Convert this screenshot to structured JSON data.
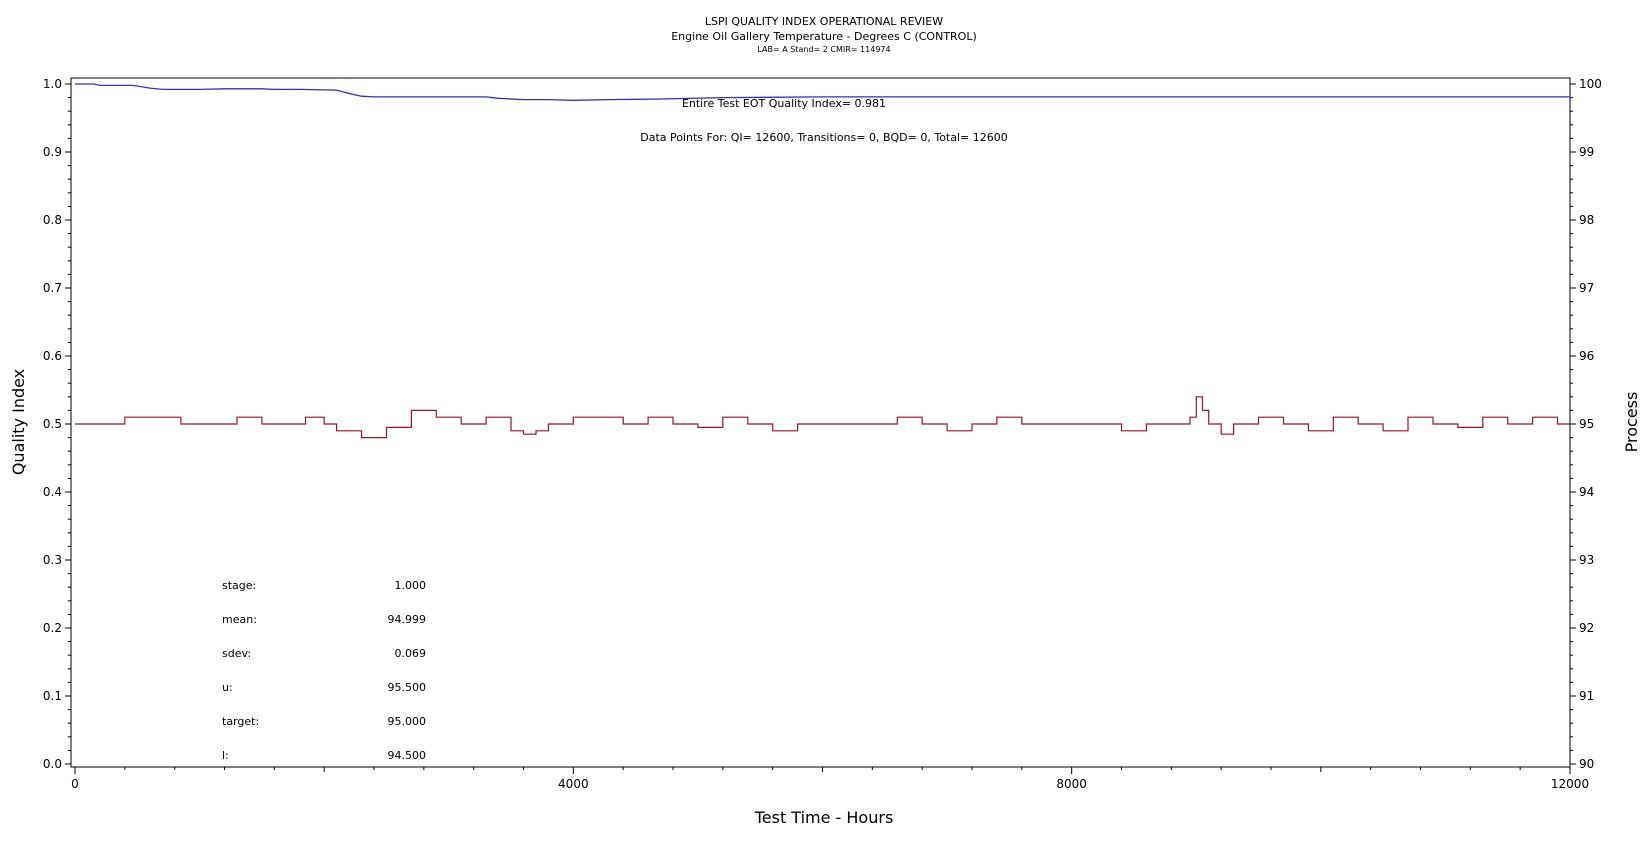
{
  "chart_data": {
    "type": "line",
    "title": "LSPI QUALITY INDEX OPERATIONAL REVIEW",
    "subtitle": "Engine Oil Gallery Temperature - Degrees C (CONTROL)",
    "subtitle2": "LAB= A Stand= 2 CMIR= 114974",
    "xlabel": "Test Time - Hours",
    "ylabel_left": "Quality Index",
    "ylabel_right": "Process",
    "xlim": [
      0,
      12000
    ],
    "ylim_left": [
      0,
      1
    ],
    "ylim_right": [
      90,
      100
    ],
    "x_ticks": [
      "0",
      "4000",
      "8000",
      "12000"
    ],
    "y_ticks_left": [
      "0.0",
      "0.1",
      "0.2",
      "0.3",
      "0.4",
      "0.5",
      "0.6",
      "0.7",
      "0.8",
      "0.9",
      "1.0"
    ],
    "y_ticks_right": [
      "90",
      "91",
      "92",
      "93",
      "94",
      "95",
      "96",
      "97",
      "98",
      "99",
      "100"
    ],
    "annotations": {
      "quality_index": "Entire Test EOT Quality Index=   0.981",
      "data_points": "Data Points For: QI= 12600, Transitions=     0, BQD=     0, Total= 12600"
    },
    "stats": [
      {
        "label": "stage:",
        "value": "1.000"
      },
      {
        "label": "mean:",
        "value": "94.999"
      },
      {
        "label": "sdev:",
        "value": "0.069"
      },
      {
        "label": "u:",
        "value": "95.500"
      },
      {
        "label": "target:",
        "value": "95.000"
      },
      {
        "label": "l:",
        "value": "94.500"
      }
    ],
    "grid": false,
    "series": [
      {
        "axis": "left",
        "color": "#3030c0",
        "x": [
          0,
          150,
          200,
          350,
          450,
          500,
          600,
          700,
          1000,
          1200,
          1500,
          1600,
          1800,
          2100,
          2200,
          2300,
          2400,
          2600,
          3000,
          3300,
          3400,
          3600,
          3800,
          4000,
          4300,
          4700,
          5200,
          6000,
          7000,
          7300,
          8000,
          9000,
          9500,
          10000,
          11000,
          12000
        ],
        "y": [
          1.0,
          1.0,
          0.998,
          0.998,
          0.998,
          0.997,
          0.994,
          0.992,
          0.992,
          0.993,
          0.993,
          0.992,
          0.992,
          0.991,
          0.986,
          0.982,
          0.981,
          0.981,
          0.981,
          0.981,
          0.979,
          0.977,
          0.977,
          0.976,
          0.977,
          0.978,
          0.98,
          0.981,
          0.981,
          0.981,
          0.981,
          0.981,
          0.981,
          0.981,
          0.981,
          0.981
        ]
      },
      {
        "axis": "right",
        "color": "#a0102a",
        "x": [
          0,
          250,
          400,
          700,
          850,
          1000,
          1300,
          1500,
          1700,
          1850,
          2000,
          2100,
          2300,
          2500,
          2700,
          2900,
          3100,
          3300,
          3500,
          3600,
          3700,
          3800,
          4000,
          4200,
          4400,
          4600,
          4800,
          5000,
          5200,
          5400,
          5600,
          5800,
          6000,
          6200,
          6400,
          6600,
          6800,
          7000,
          7200,
          7400,
          7600,
          7800,
          8000,
          8200,
          8400,
          8600,
          8800,
          8950,
          9000,
          9050,
          9100,
          9200,
          9300,
          9500,
          9700,
          9900,
          10100,
          10300,
          10500,
          10700,
          10900,
          11100,
          11300,
          11500,
          11700,
          11900,
          12000
        ],
        "y": [
          95.0,
          95.0,
          95.1,
          95.1,
          95.0,
          95.0,
          95.1,
          95.0,
          95.0,
          95.1,
          95.0,
          94.9,
          94.8,
          94.95,
          95.2,
          95.1,
          95.0,
          95.1,
          94.9,
          94.85,
          94.9,
          95.0,
          95.1,
          95.1,
          95.0,
          95.1,
          95.0,
          94.95,
          95.1,
          95.0,
          94.9,
          95.0,
          95.0,
          95.0,
          95.0,
          95.1,
          95.0,
          94.9,
          95.0,
          95.1,
          95.0,
          95.0,
          95.0,
          95.0,
          94.9,
          95.0,
          95.0,
          95.1,
          95.4,
          95.2,
          95.0,
          94.85,
          95.0,
          95.1,
          95.0,
          94.9,
          95.1,
          95.0,
          94.9,
          95.1,
          95.0,
          94.95,
          95.1,
          95.0,
          95.1,
          95.0,
          95.0
        ]
      }
    ]
  }
}
